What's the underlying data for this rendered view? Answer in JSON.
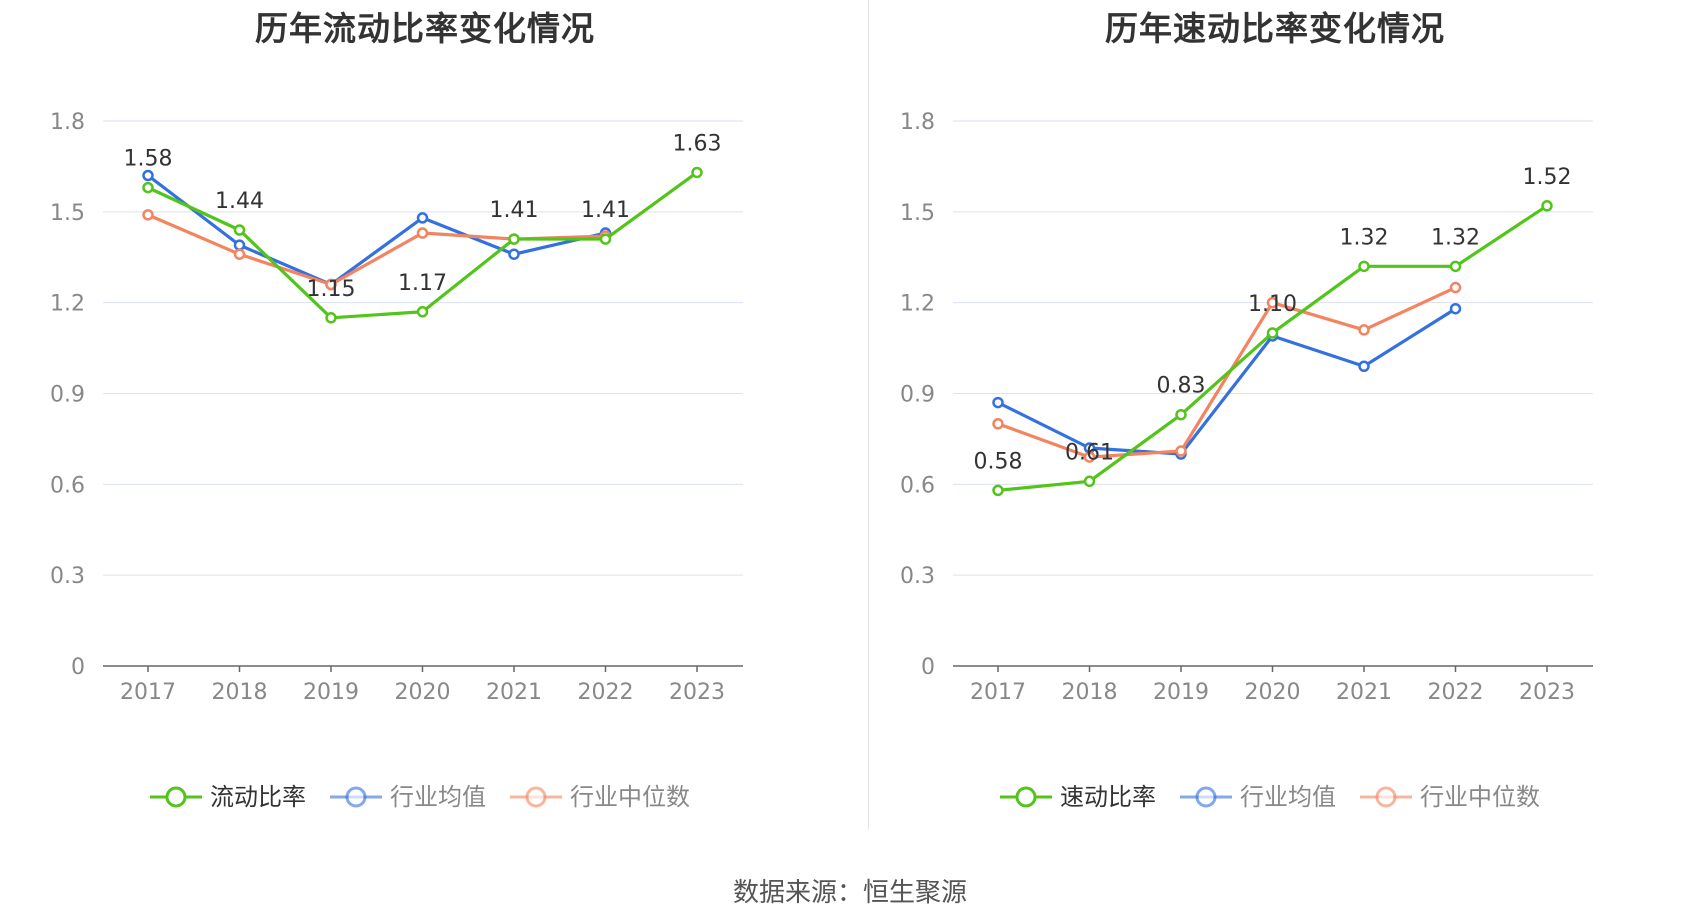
{
  "source_label": "数据来源：恒生聚源",
  "colors": {
    "primary": "#52c41a",
    "average": "#3370e0",
    "median": "#f4845f",
    "axis": "#666666",
    "grid": "#dde1f3",
    "tick": "#888888",
    "label": "#333333"
  },
  "chart_data": [
    {
      "type": "line",
      "title": "历年流动比率变化情况",
      "categories": [
        "2017",
        "2018",
        "2019",
        "2020",
        "2021",
        "2022",
        "2023"
      ],
      "yticks": [
        "0",
        "0.3",
        "0.6",
        "0.9",
        "1.2",
        "1.5",
        "1.8"
      ],
      "ylim": [
        0,
        1.8
      ],
      "series": [
        {
          "name": "流动比率",
          "key": "primary",
          "values": [
            1.58,
            1.44,
            1.15,
            1.17,
            1.41,
            1.41,
            1.63
          ],
          "labels": [
            "1.58",
            "1.44",
            "1.15",
            "1.17",
            "1.41",
            "1.41",
            "1.63"
          ]
        },
        {
          "name": "行业均值",
          "key": "average",
          "values": [
            1.62,
            1.39,
            1.26,
            1.48,
            1.36,
            1.43,
            null
          ]
        },
        {
          "name": "行业中位数",
          "key": "median",
          "values": [
            1.49,
            1.36,
            1.26,
            1.43,
            1.41,
            1.42,
            null
          ]
        }
      ]
    },
    {
      "type": "line",
      "title": "历年速动比率变化情况",
      "categories": [
        "2017",
        "2018",
        "2019",
        "2020",
        "2021",
        "2022",
        "2023"
      ],
      "yticks": [
        "0",
        "0.3",
        "0.6",
        "0.9",
        "1.2",
        "1.5",
        "1.8"
      ],
      "ylim": [
        0,
        1.8
      ],
      "series": [
        {
          "name": "速动比率",
          "key": "primary",
          "values": [
            0.58,
            0.61,
            0.83,
            1.1,
            1.32,
            1.32,
            1.52
          ],
          "labels": [
            "0.58",
            "0.61",
            "0.83",
            "1.10",
            "1.32",
            "1.32",
            "1.52"
          ]
        },
        {
          "name": "行业均值",
          "key": "average",
          "values": [
            0.87,
            0.72,
            0.7,
            1.09,
            0.99,
            1.18,
            null
          ]
        },
        {
          "name": "行业中位数",
          "key": "median",
          "values": [
            0.8,
            0.69,
            0.71,
            1.2,
            1.11,
            1.25,
            null
          ]
        }
      ]
    }
  ]
}
